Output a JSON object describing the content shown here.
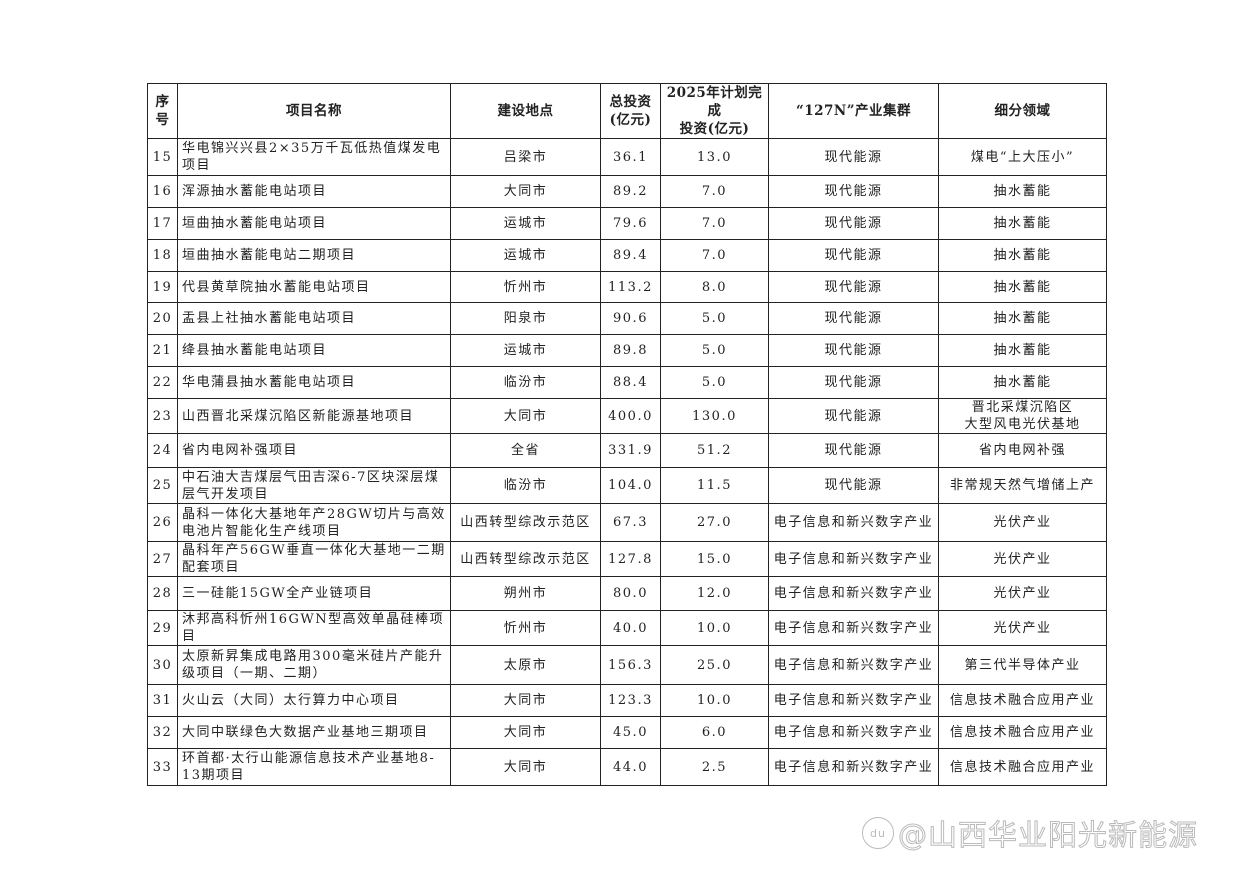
{
  "table": {
    "headers": [
      "序\n号",
      "项目名称",
      "建设地点",
      "总投资\n(亿元)",
      "2025年计划完成\n投资(亿元)",
      "“127N”产业集群",
      "细分领域"
    ],
    "rows": [
      [
        "15",
        "华电锦兴兴县2×35万千瓦低热值煤发电项目",
        "吕梁市",
        "36.1",
        "13.0",
        "现代能源",
        "煤电“上大压小”"
      ],
      [
        "16",
        "浑源抽水蓄能电站项目",
        "大同市",
        "89.2",
        "7.0",
        "现代能源",
        "抽水蓄能"
      ],
      [
        "17",
        "垣曲抽水蓄能电站项目",
        "运城市",
        "79.6",
        "7.0",
        "现代能源",
        "抽水蓄能"
      ],
      [
        "18",
        "垣曲抽水蓄能电站二期项目",
        "运城市",
        "89.4",
        "7.0",
        "现代能源",
        "抽水蓄能"
      ],
      [
        "19",
        "代县黄草院抽水蓄能电站项目",
        "忻州市",
        "113.2",
        "8.0",
        "现代能源",
        "抽水蓄能"
      ],
      [
        "20",
        "盂县上社抽水蓄能电站项目",
        "阳泉市",
        "90.6",
        "5.0",
        "现代能源",
        "抽水蓄能"
      ],
      [
        "21",
        "绛县抽水蓄能电站项目",
        "运城市",
        "89.8",
        "5.0",
        "现代能源",
        "抽水蓄能"
      ],
      [
        "22",
        "华电蒲县抽水蓄能电站项目",
        "临汾市",
        "88.4",
        "5.0",
        "现代能源",
        "抽水蓄能"
      ],
      [
        "23",
        "山西晋北采煤沉陷区新能源基地项目",
        "大同市",
        "400.0",
        "130.0",
        "现代能源",
        "晋北采煤沉陷区\n大型风电光伏基地"
      ],
      [
        "24",
        "省内电网补强项目",
        "全省",
        "331.9",
        "51.2",
        "现代能源",
        "省内电网补强"
      ],
      [
        "25",
        "中石油大吉煤层气田吉深6-7区块深层煤层气开发项目",
        "临汾市",
        "104.0",
        "11.5",
        "现代能源",
        "非常规天然气增储上产"
      ],
      [
        "26",
        "晶科一体化大基地年产28GW切片与高效电池片智能化生产线项目",
        "山西转型综改示范区",
        "67.3",
        "27.0",
        "电子信息和新兴数字产业",
        "光伏产业"
      ],
      [
        "27",
        "晶科年产56GW垂直一体化大基地一二期配套项目",
        "山西转型综改示范区",
        "127.8",
        "15.0",
        "电子信息和新兴数字产业",
        "光伏产业"
      ],
      [
        "28",
        "三一硅能15GW全产业链项目",
        "朔州市",
        "80.0",
        "12.0",
        "电子信息和新兴数字产业",
        "光伏产业"
      ],
      [
        "29",
        "沐邦高科忻州16GWN型高效单晶硅棒项目",
        "忻州市",
        "40.0",
        "10.0",
        "电子信息和新兴数字产业",
        "光伏产业"
      ],
      [
        "30",
        "太原新昇集成电路用300毫米硅片产能升级项目（一期、二期）",
        "太原市",
        "156.3",
        "25.0",
        "电子信息和新兴数字产业",
        "第三代半导体产业"
      ],
      [
        "31",
        "火山云（大同）太行算力中心项目",
        "大同市",
        "123.3",
        "10.0",
        "电子信息和新兴数字产业",
        "信息技术融合应用产业"
      ],
      [
        "32",
        "大同中联绿色大数据产业基地三期项目",
        "大同市",
        "45.0",
        "6.0",
        "电子信息和新兴数字产业",
        "信息技术融合应用产业"
      ],
      [
        "33",
        "环首都·太行山能源信息技术产业基地8-13期项目",
        "大同市",
        "44.0",
        "2.5",
        "电子信息和新兴数字产业",
        "信息技术融合应用产业"
      ]
    ]
  },
  "watermark": {
    "text": "@山西华业阳光新能源",
    "logo": "du"
  }
}
